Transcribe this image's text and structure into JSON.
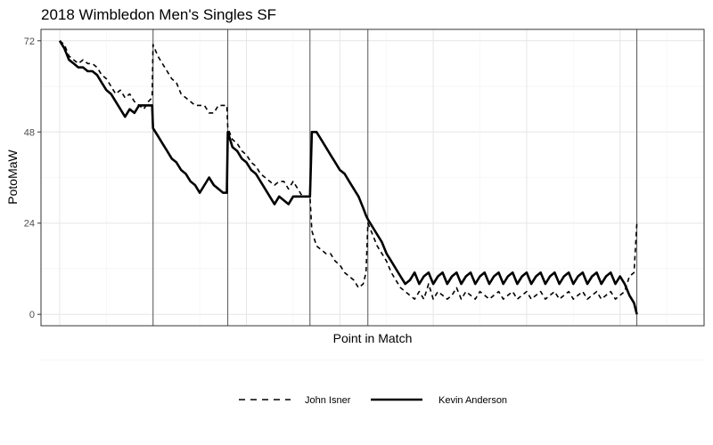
{
  "chart_data": {
    "type": "line",
    "title": "2018 Wimbledon Men's Singles SF",
    "xlabel": "Point in Match",
    "ylabel": "PotoMaW",
    "ylim": [
      -3,
      75
    ],
    "xlim": [
      -20,
      690
    ],
    "y_ticks": [
      0,
      24,
      48,
      72
    ],
    "x_ticks": [],
    "grid": true,
    "legend_position": "bottom",
    "set_boundaries": [
      100,
      180,
      268,
      330,
      618
    ],
    "series": [
      {
        "name": "John Isner",
        "style": "dashed",
        "points": [
          [
            0,
            72
          ],
          [
            5,
            71
          ],
          [
            10,
            68
          ],
          [
            15,
            67
          ],
          [
            20,
            66
          ],
          [
            25,
            67
          ],
          [
            30,
            66
          ],
          [
            35,
            66
          ],
          [
            40,
            65
          ],
          [
            45,
            63
          ],
          [
            50,
            62
          ],
          [
            55,
            60
          ],
          [
            60,
            58
          ],
          [
            65,
            59
          ],
          [
            70,
            57
          ],
          [
            75,
            58
          ],
          [
            80,
            56
          ],
          [
            85,
            55
          ],
          [
            90,
            54
          ],
          [
            95,
            56
          ],
          [
            99,
            57
          ],
          [
            100,
            71
          ],
          [
            105,
            68
          ],
          [
            110,
            66
          ],
          [
            115,
            64
          ],
          [
            120,
            62
          ],
          [
            125,
            61
          ],
          [
            130,
            58
          ],
          [
            135,
            57
          ],
          [
            140,
            56
          ],
          [
            145,
            55
          ],
          [
            150,
            55
          ],
          [
            155,
            55
          ],
          [
            160,
            53
          ],
          [
            165,
            53
          ],
          [
            170,
            55
          ],
          [
            175,
            55
          ],
          [
            179,
            55
          ],
          [
            180,
            49
          ],
          [
            185,
            46
          ],
          [
            190,
            45
          ],
          [
            195,
            43
          ],
          [
            200,
            42
          ],
          [
            205,
            40
          ],
          [
            210,
            39
          ],
          [
            215,
            37
          ],
          [
            220,
            36
          ],
          [
            225,
            35
          ],
          [
            230,
            34
          ],
          [
            235,
            35
          ],
          [
            240,
            35
          ],
          [
            245,
            33
          ],
          [
            250,
            35
          ],
          [
            255,
            33
          ],
          [
            260,
            31
          ],
          [
            265,
            31
          ],
          [
            268,
            31
          ],
          [
            270,
            22
          ],
          [
            275,
            18
          ],
          [
            280,
            17
          ],
          [
            285,
            16
          ],
          [
            290,
            16
          ],
          [
            295,
            14
          ],
          [
            300,
            13
          ],
          [
            305,
            11
          ],
          [
            310,
            10
          ],
          [
            315,
            9
          ],
          [
            320,
            7
          ],
          [
            325,
            8
          ],
          [
            328,
            11
          ],
          [
            330,
            24
          ],
          [
            335,
            21
          ],
          [
            340,
            18
          ],
          [
            345,
            16
          ],
          [
            350,
            14
          ],
          [
            355,
            11
          ],
          [
            360,
            9
          ],
          [
            365,
            7
          ],
          [
            370,
            6
          ],
          [
            375,
            5
          ],
          [
            380,
            4
          ],
          [
            385,
            6
          ],
          [
            390,
            4
          ],
          [
            395,
            8
          ],
          [
            400,
            4
          ],
          [
            405,
            6
          ],
          [
            410,
            5
          ],
          [
            415,
            4
          ],
          [
            420,
            5
          ],
          [
            425,
            7
          ],
          [
            430,
            4
          ],
          [
            435,
            6
          ],
          [
            440,
            5
          ],
          [
            445,
            4
          ],
          [
            450,
            6
          ],
          [
            455,
            5
          ],
          [
            460,
            4
          ],
          [
            465,
            5
          ],
          [
            470,
            6
          ],
          [
            475,
            4
          ],
          [
            480,
            5
          ],
          [
            485,
            6
          ],
          [
            490,
            4
          ],
          [
            495,
            5
          ],
          [
            500,
            6
          ],
          [
            505,
            4
          ],
          [
            510,
            5
          ],
          [
            515,
            6
          ],
          [
            520,
            4
          ],
          [
            525,
            5
          ],
          [
            530,
            6
          ],
          [
            535,
            4
          ],
          [
            540,
            5
          ],
          [
            545,
            6
          ],
          [
            550,
            4
          ],
          [
            555,
            5
          ],
          [
            560,
            6
          ],
          [
            565,
            4
          ],
          [
            570,
            5
          ],
          [
            575,
            6
          ],
          [
            580,
            4
          ],
          [
            585,
            5
          ],
          [
            590,
            6
          ],
          [
            595,
            4
          ],
          [
            600,
            5
          ],
          [
            605,
            6
          ],
          [
            610,
            10
          ],
          [
            615,
            11
          ],
          [
            618,
            24
          ]
        ]
      },
      {
        "name": "Kevin Anderson",
        "style": "solid",
        "points": [
          [
            0,
            72
          ],
          [
            5,
            70
          ],
          [
            10,
            67
          ],
          [
            15,
            66
          ],
          [
            20,
            65
          ],
          [
            25,
            65
          ],
          [
            30,
            64
          ],
          [
            35,
            64
          ],
          [
            40,
            63
          ],
          [
            45,
            61
          ],
          [
            50,
            59
          ],
          [
            55,
            58
          ],
          [
            60,
            56
          ],
          [
            65,
            54
          ],
          [
            70,
            52
          ],
          [
            75,
            54
          ],
          [
            80,
            53
          ],
          [
            85,
            55
          ],
          [
            90,
            55
          ],
          [
            95,
            55
          ],
          [
            99,
            55
          ],
          [
            100,
            49
          ],
          [
            105,
            47
          ],
          [
            110,
            45
          ],
          [
            115,
            43
          ],
          [
            120,
            41
          ],
          [
            125,
            40
          ],
          [
            130,
            38
          ],
          [
            135,
            37
          ],
          [
            140,
            35
          ],
          [
            145,
            34
          ],
          [
            150,
            32
          ],
          [
            155,
            34
          ],
          [
            160,
            36
          ],
          [
            165,
            34
          ],
          [
            170,
            33
          ],
          [
            175,
            32
          ],
          [
            179,
            32
          ],
          [
            180,
            48
          ],
          [
            185,
            44
          ],
          [
            190,
            43
          ],
          [
            195,
            41
          ],
          [
            200,
            40
          ],
          [
            205,
            38
          ],
          [
            210,
            37
          ],
          [
            215,
            35
          ],
          [
            220,
            33
          ],
          [
            225,
            31
          ],
          [
            230,
            29
          ],
          [
            235,
            31
          ],
          [
            240,
            30
          ],
          [
            245,
            29
          ],
          [
            250,
            31
          ],
          [
            255,
            31
          ],
          [
            260,
            31
          ],
          [
            265,
            31
          ],
          [
            268,
            31
          ],
          [
            270,
            48
          ],
          [
            275,
            48
          ],
          [
            280,
            46
          ],
          [
            285,
            44
          ],
          [
            290,
            42
          ],
          [
            295,
            40
          ],
          [
            300,
            38
          ],
          [
            305,
            37
          ],
          [
            310,
            35
          ],
          [
            315,
            33
          ],
          [
            320,
            31
          ],
          [
            325,
            28
          ],
          [
            328,
            26
          ],
          [
            330,
            25
          ],
          [
            335,
            23
          ],
          [
            340,
            21
          ],
          [
            345,
            19
          ],
          [
            350,
            16
          ],
          [
            355,
            14
          ],
          [
            360,
            12
          ],
          [
            365,
            10
          ],
          [
            370,
            8
          ],
          [
            375,
            9
          ],
          [
            380,
            11
          ],
          [
            385,
            8
          ],
          [
            390,
            10
          ],
          [
            395,
            11
          ],
          [
            400,
            8
          ],
          [
            405,
            10
          ],
          [
            410,
            11
          ],
          [
            415,
            8
          ],
          [
            420,
            10
          ],
          [
            425,
            11
          ],
          [
            430,
            8
          ],
          [
            435,
            10
          ],
          [
            440,
            11
          ],
          [
            445,
            8
          ],
          [
            450,
            10
          ],
          [
            455,
            11
          ],
          [
            460,
            8
          ],
          [
            465,
            10
          ],
          [
            470,
            11
          ],
          [
            475,
            8
          ],
          [
            480,
            10
          ],
          [
            485,
            11
          ],
          [
            490,
            8
          ],
          [
            495,
            10
          ],
          [
            500,
            11
          ],
          [
            505,
            8
          ],
          [
            510,
            10
          ],
          [
            515,
            11
          ],
          [
            520,
            8
          ],
          [
            525,
            10
          ],
          [
            530,
            11
          ],
          [
            535,
            8
          ],
          [
            540,
            10
          ],
          [
            545,
            11
          ],
          [
            550,
            8
          ],
          [
            555,
            10
          ],
          [
            560,
            11
          ],
          [
            565,
            8
          ],
          [
            570,
            10
          ],
          [
            575,
            11
          ],
          [
            580,
            8
          ],
          [
            585,
            10
          ],
          [
            590,
            11
          ],
          [
            595,
            8
          ],
          [
            600,
            10
          ],
          [
            605,
            8
          ],
          [
            610,
            5
          ],
          [
            615,
            3
          ],
          [
            618,
            0
          ]
        ]
      }
    ]
  }
}
